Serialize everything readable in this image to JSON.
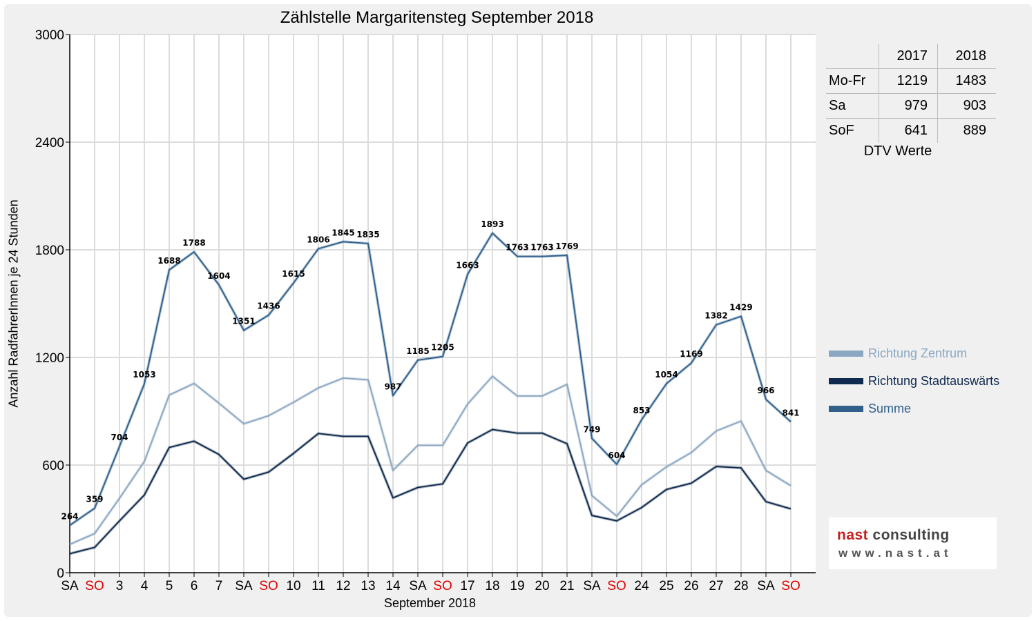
{
  "colors": {
    "zentrum": "#8ba7c2",
    "stadtauswaerts": "#0f2a4e",
    "summe": "#2f5f8b",
    "weekend_red": "#e00000"
  },
  "chart_data": {
    "type": "line",
    "title": "Zählstelle Margaritensteg September 2018",
    "xlabel": "September 2018",
    "ylabel": "Anzahl RadfahrerInnen je 24 Stunden",
    "ylim": [
      0,
      3000
    ],
    "yticks": [
      "0",
      "600",
      "1200",
      "1800",
      "2400",
      "3000"
    ],
    "grid": true,
    "legend_position": "right",
    "categories": [
      "SA",
      "SO",
      "3",
      "4",
      "5",
      "6",
      "7",
      "SA",
      "SO",
      "10",
      "11",
      "12",
      "13",
      "14",
      "SA",
      "SO",
      "17",
      "18",
      "19",
      "20",
      "21",
      "SA",
      "SO",
      "24",
      "25",
      "26",
      "27",
      "28",
      "SA",
      "SO"
    ],
    "sunday_indices": [
      1,
      8,
      15,
      22,
      29
    ],
    "series": [
      {
        "name": "Richtung Zentrum",
        "values": [
          158,
          218,
          415,
          620,
          990,
          1055,
          945,
          830,
          875,
          950,
          1030,
          1085,
          1075,
          570,
          710,
          710,
          940,
          1095,
          985,
          985,
          1050,
          430,
          315,
          490,
          590,
          670,
          790,
          845,
          570,
          485
        ]
      },
      {
        "name": "Richtung Stadtauswärts",
        "values": [
          106,
          141,
          289,
          433,
          698,
          733,
          659,
          521,
          561,
          665,
          776,
          760,
          760,
          417,
          475,
          495,
          723,
          798,
          778,
          778,
          719,
          319,
          289,
          363,
          464,
          499,
          592,
          584,
          396,
          356
        ]
      },
      {
        "name": "Summe",
        "values": [
          264,
          359,
          704,
          1053,
          1688,
          1788,
          1604,
          1351,
          1436,
          1615,
          1806,
          1845,
          1835,
          987,
          1185,
          1205,
          1663,
          1893,
          1763,
          1763,
          1769,
          749,
          604,
          853,
          1054,
          1169,
          1382,
          1429,
          966,
          841
        ]
      }
    ]
  },
  "dtv_table": {
    "header": [
      "",
      "2017",
      "2018"
    ],
    "rows": [
      {
        "label": "Mo-Fr",
        "v2017": "1219",
        "v2018": "1483"
      },
      {
        "label": "Sa",
        "v2017": "979",
        "v2018": "903"
      },
      {
        "label": "SoF",
        "v2017": "641",
        "v2018": "889"
      }
    ],
    "caption": "DTV Werte"
  },
  "logo": {
    "brand_part1": "nast",
    "brand_part2": "consulting",
    "url": "www.nast.at"
  }
}
